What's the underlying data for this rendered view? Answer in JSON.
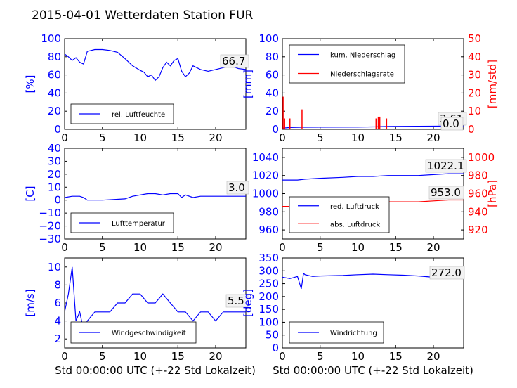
{
  "figure_title": "2015-04-01 Wetterdaten Station FUR",
  "colors": {
    "primary": "#0000ff",
    "secondary": "#ff0000",
    "box": "#000000",
    "value_box_bg": "#f2f2f2"
  },
  "chart_data": [
    {
      "type": "line",
      "ylabel": "[%]",
      "xlabel": "",
      "xlim": [
        0,
        24
      ],
      "ylim": [
        0,
        100
      ],
      "xticks": [
        "0",
        "5",
        "10",
        "15",
        "20"
      ],
      "yticks": [
        "0",
        "20",
        "40",
        "60",
        "80",
        "100"
      ],
      "series": [
        {
          "name": "rel. Luftfeuchte",
          "x": [
            0,
            0.5,
            1,
            1.5,
            2,
            2.5,
            3,
            4,
            5,
            6,
            7,
            8,
            9,
            10,
            10.5,
            11,
            11.5,
            12,
            12.5,
            13,
            13.5,
            14,
            14.5,
            15,
            15.5,
            16,
            16.5,
            17,
            18,
            19,
            20,
            21,
            22,
            23,
            24
          ],
          "values": [
            83,
            80,
            76,
            79,
            74,
            72,
            86,
            88,
            88,
            87,
            85,
            78,
            70,
            65,
            63,
            58,
            60,
            54,
            58,
            68,
            74,
            70,
            76,
            78,
            64,
            58,
            62,
            70,
            66,
            64,
            66,
            68,
            70,
            67,
            66
          ]
        }
      ],
      "legend": "bottom-left",
      "annotation": "66.7"
    },
    {
      "type": "line",
      "ylabel": "[mm]",
      "ylabel2": "[mm/std]",
      "xlim": [
        0,
        24
      ],
      "ylim": [
        0,
        100
      ],
      "ylim2": [
        0,
        50
      ],
      "xticks": [
        "0",
        "5",
        "10",
        "15",
        "20"
      ],
      "yticks": [
        "0",
        "20",
        "40",
        "60",
        "80",
        "100"
      ],
      "yticks2": [
        "0",
        "10",
        "20",
        "30",
        "40",
        "50"
      ],
      "series": [
        {
          "name": "kum. Niederschlag",
          "x": [
            0,
            0.2,
            1,
            2.6,
            5,
            10,
            12.5,
            13,
            14,
            18,
            20,
            22,
            24
          ],
          "values": [
            0,
            1.5,
            2,
            2.3,
            2.4,
            2.5,
            2.8,
            3.0,
            3.2,
            3.4,
            3.5,
            3.6,
            3.61
          ]
        },
        {
          "name": "Niederschlagsrate",
          "axis": "right",
          "spikes": [
            [
              0.1,
              18
            ],
            [
              0.3,
              6
            ],
            [
              1,
              6
            ],
            [
              2.6,
              11
            ],
            [
              12.4,
              6
            ],
            [
              12.7,
              7
            ],
            [
              12.9,
              7
            ],
            [
              13.8,
              6
            ]
          ]
        }
      ],
      "legend": "top-left",
      "annotations": [
        "3.61",
        "0.0"
      ]
    },
    {
      "type": "line",
      "ylabel": "[C]",
      "xlim": [
        0,
        24
      ],
      "ylim": [
        -30,
        40
      ],
      "xticks": [
        "0",
        "5",
        "10",
        "15",
        "20"
      ],
      "yticks": [
        "−30",
        "−20",
        "−10",
        "0",
        "10",
        "20",
        "30",
        "40"
      ],
      "series": [
        {
          "name": "Lufttemperatur",
          "x": [
            0,
            1,
            2,
            2.5,
            3,
            5,
            8,
            9,
            10,
            11,
            12,
            13,
            14,
            15,
            15.5,
            16,
            17,
            18,
            19,
            20,
            22,
            24
          ],
          "values": [
            2,
            3,
            3,
            2,
            0,
            0,
            1,
            3,
            4,
            5,
            5,
            4,
            5,
            5,
            2,
            4,
            2,
            3,
            3,
            3,
            3,
            3
          ]
        }
      ],
      "legend": "bottom-left",
      "annotation": "3.0"
    },
    {
      "type": "line",
      "ylabel": "",
      "ylabel2": "[hPa]",
      "xlim": [
        0,
        24
      ],
      "ylim": [
        950,
        1050
      ],
      "ylim2": [
        910,
        1010
      ],
      "xticks": [
        "0",
        "5",
        "10",
        "15",
        "20"
      ],
      "yticks": [
        "960",
        "980",
        "1000",
        "1020",
        "1040"
      ],
      "yticks2": [
        "920",
        "940",
        "960",
        "980",
        "1000"
      ],
      "series": [
        {
          "name": "red. Luftdruck",
          "x": [
            0,
            2,
            3,
            5,
            8,
            10,
            12,
            14,
            16,
            18,
            20,
            22,
            24
          ],
          "values": [
            1015,
            1015,
            1016,
            1017,
            1018,
            1019,
            1019,
            1020,
            1020,
            1020,
            1021,
            1022,
            1022
          ]
        },
        {
          "name": "abs. Luftdruck",
          "axis": "right",
          "x": [
            0,
            2,
            3,
            5,
            8,
            10,
            12,
            14,
            16,
            18,
            20,
            22,
            24
          ],
          "values": [
            946,
            946,
            947,
            948,
            949,
            950,
            950,
            951,
            951,
            951,
            952,
            953,
            953
          ]
        }
      ],
      "legend": "bottom-left",
      "annotations": [
        "1022.1",
        "953.0"
      ]
    },
    {
      "type": "line",
      "ylabel": "[m/s]",
      "xlabel": "Std 00:00:00 UTC (+-22 Std Lokalzeit)",
      "xlim": [
        0,
        24
      ],
      "ylim": [
        1,
        11
      ],
      "xticks": [
        "0",
        "5",
        "10",
        "15",
        "20"
      ],
      "yticks": [
        "2",
        "4",
        "6",
        "8",
        "10"
      ],
      "series": [
        {
          "name": "Windgeschwindigkeit",
          "x": [
            0,
            0.5,
            1,
            1.5,
            2,
            2.5,
            3,
            4,
            5,
            6,
            7,
            8,
            9,
            10,
            11,
            12,
            13,
            14,
            15,
            16,
            17,
            18,
            19,
            20,
            21,
            22,
            23,
            24
          ],
          "values": [
            5,
            7,
            10,
            4,
            5,
            3,
            4,
            5,
            5,
            5,
            6,
            6,
            7,
            7,
            6,
            6,
            7,
            6,
            5,
            5,
            4,
            5,
            5,
            4,
            5,
            5,
            5,
            5
          ]
        }
      ],
      "legend": "bottom-left",
      "annotation": "5.5"
    },
    {
      "type": "line",
      "ylabel": "[deg]",
      "xlabel": "Std 00:00:00 UTC (+-22 Std Lokalzeit)",
      "xlim": [
        0,
        24
      ],
      "ylim": [
        0,
        350
      ],
      "xticks": [
        "0",
        "5",
        "10",
        "15",
        "20"
      ],
      "yticks": [
        "0",
        "50",
        "100",
        "150",
        "200",
        "250",
        "300",
        "350"
      ],
      "series": [
        {
          "name": "Windrichtung",
          "x": [
            0,
            1,
            2,
            2.5,
            2.8,
            3,
            4,
            5,
            8,
            10,
            12,
            14,
            16,
            18,
            20,
            22,
            24
          ],
          "values": [
            275,
            270,
            278,
            230,
            290,
            285,
            278,
            280,
            282,
            285,
            287,
            285,
            283,
            280,
            275,
            270,
            270
          ]
        }
      ],
      "legend": "bottom-left",
      "annotation": "272.0"
    }
  ]
}
